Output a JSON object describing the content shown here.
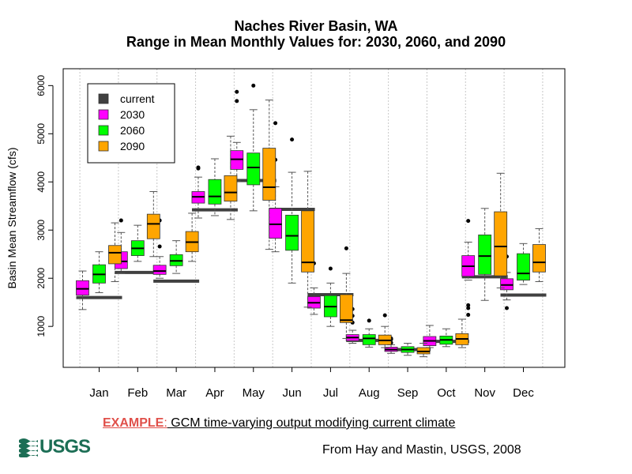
{
  "chart_data": {
    "type": "box",
    "title": "Naches River Basin, WA",
    "subtitle": "Range in Mean Monthly Values for: 2030, 2060, and 2090",
    "xlabel": "",
    "ylabel": "Basin Mean Streamflow (cfs)",
    "ylim": [
      150,
      6350
    ],
    "yticks": [
      1000,
      2000,
      3000,
      4000,
      5000,
      6000
    ],
    "grid": "vertical dotted",
    "legend_position": "top-left",
    "categories": [
      "Jan",
      "Feb",
      "Mar",
      "Apr",
      "May",
      "Jun",
      "Jul",
      "Aug",
      "Sep",
      "Oct",
      "Nov",
      "Dec"
    ],
    "current": {
      "name": "current",
      "color": "#404040",
      "values": [
        1600,
        2120,
        1940,
        3420,
        4030,
        3430,
        1660,
        710,
        520,
        690,
        2030,
        1650
      ]
    },
    "series": [
      {
        "name": "2030",
        "color": "#ff00ff",
        "boxes": [
          {
            "min": 1350,
            "q1": 1650,
            "median": 1780,
            "q3": 1950,
            "max": 2150,
            "outliers": []
          },
          {
            "min": 2100,
            "q1": 2200,
            "median": 2350,
            "q3": 2550,
            "max": 2950,
            "outliers": [
              3200
            ]
          },
          {
            "min": 2000,
            "q1": 2080,
            "median": 2150,
            "q3": 2270,
            "max": 2450,
            "outliers": [
              2660,
              3200
            ]
          },
          {
            "min": 3250,
            "q1": 3560,
            "median": 3690,
            "q3": 3800,
            "max": 4100,
            "outliers": [
              4280,
              4300
            ]
          },
          {
            "min": 4020,
            "q1": 4260,
            "median": 4470,
            "q3": 4650,
            "max": 4820,
            "outliers": [
              5680,
              5870
            ]
          },
          {
            "min": 2550,
            "q1": 2830,
            "median": 3120,
            "q3": 3450,
            "max": 3900,
            "outliers": [
              4460,
              5220
            ]
          },
          {
            "min": 1250,
            "q1": 1380,
            "median": 1490,
            "q3": 1620,
            "max": 1800,
            "outliers": [
              2310
            ]
          },
          {
            "min": 650,
            "q1": 700,
            "median": 770,
            "q3": 830,
            "max": 920,
            "outliers": [
              1080,
              1220,
              1360
            ]
          },
          {
            "min": 440,
            "q1": 480,
            "median": 520,
            "q3": 570,
            "max": 620,
            "outliers": [
              660,
              730,
              750
            ]
          },
          {
            "min": 560,
            "q1": 600,
            "median": 700,
            "q3": 790,
            "max": 1020,
            "outliers": []
          },
          {
            "min": 1960,
            "q1": 2040,
            "median": 2250,
            "q3": 2470,
            "max": 2750,
            "outliers": [
              3190,
              1440,
              1380,
              1240
            ]
          },
          {
            "min": 1550,
            "q1": 1760,
            "median": 1860,
            "q3": 1990,
            "max": 2120,
            "outliers": [
              2450,
              1380
            ]
          }
        ]
      },
      {
        "name": "2060",
        "color": "#00ff00",
        "boxes": [
          {
            "min": 1700,
            "q1": 1900,
            "median": 2080,
            "q3": 2280,
            "max": 2550,
            "outliers": []
          },
          {
            "min": 2350,
            "q1": 2470,
            "median": 2620,
            "q3": 2780,
            "max": 3100,
            "outliers": []
          },
          {
            "min": 2100,
            "q1": 2260,
            "median": 2360,
            "q3": 2490,
            "max": 2780,
            "outliers": []
          },
          {
            "min": 3300,
            "q1": 3540,
            "median": 3700,
            "q3": 4050,
            "max": 4480,
            "outliers": []
          },
          {
            "min": 3400,
            "q1": 3940,
            "median": 4300,
            "q3": 4600,
            "max": 5500,
            "outliers": [
              6000
            ]
          },
          {
            "min": 1900,
            "q1": 2580,
            "median": 2880,
            "q3": 3310,
            "max": 4200,
            "outliers": [
              4880
            ]
          },
          {
            "min": 1000,
            "q1": 1200,
            "median": 1410,
            "q3": 1640,
            "max": 1900,
            "outliers": [
              2200
            ]
          },
          {
            "min": 570,
            "q1": 620,
            "median": 750,
            "q3": 830,
            "max": 950,
            "outliers": [
              1120
            ]
          },
          {
            "min": 400,
            "q1": 460,
            "median": 520,
            "q3": 580,
            "max": 650,
            "outliers": []
          },
          {
            "min": 580,
            "q1": 630,
            "median": 720,
            "q3": 800,
            "max": 950,
            "outliers": []
          },
          {
            "min": 1540,
            "q1": 2080,
            "median": 2460,
            "q3": 2900,
            "max": 3450,
            "outliers": []
          },
          {
            "min": 1870,
            "q1": 1960,
            "median": 2100,
            "q3": 2510,
            "max": 2720,
            "outliers": []
          }
        ]
      },
      {
        "name": "2090",
        "color": "#ffa500",
        "boxes": [
          {
            "min": 1930,
            "q1": 2300,
            "median": 2530,
            "q3": 2680,
            "max": 3150,
            "outliers": []
          },
          {
            "min": 2450,
            "q1": 2820,
            "median": 3130,
            "q3": 3330,
            "max": 3800,
            "outliers": []
          },
          {
            "min": 2350,
            "q1": 2550,
            "median": 2750,
            "q3": 2970,
            "max": 3350,
            "outliers": []
          },
          {
            "min": 3220,
            "q1": 3600,
            "median": 3780,
            "q3": 4130,
            "max": 4950,
            "outliers": []
          },
          {
            "min": 2600,
            "q1": 3620,
            "median": 3890,
            "q3": 4700,
            "max": 5700,
            "outliers": []
          },
          {
            "min": 1400,
            "q1": 2130,
            "median": 2330,
            "q3": 3400,
            "max": 4220,
            "outliers": []
          },
          {
            "min": 750,
            "q1": 1080,
            "median": 1130,
            "q3": 1660,
            "max": 2100,
            "outliers": [
              2620
            ]
          },
          {
            "min": 560,
            "q1": 620,
            "median": 710,
            "q3": 820,
            "max": 1000,
            "outliers": [
              1230
            ]
          },
          {
            "min": 370,
            "q1": 430,
            "median": 480,
            "q3": 560,
            "max": 650,
            "outliers": []
          },
          {
            "min": 560,
            "q1": 620,
            "median": 740,
            "q3": 850,
            "max": 1150,
            "outliers": []
          },
          {
            "min": 1800,
            "q1": 2050,
            "median": 2660,
            "q3": 3380,
            "max": 4180,
            "outliers": []
          },
          {
            "min": 1930,
            "q1": 2130,
            "median": 2330,
            "q3": 2700,
            "max": 3030,
            "outliers": []
          }
        ]
      }
    ]
  },
  "caption": {
    "lead": "EXAMPLE",
    "separator": ":",
    "text": " GCM time-varying output modifying current climate"
  },
  "citation": "From Hay and Mastin, USGS, 2008",
  "logo": {
    "text": "USGS",
    "icon": "usgs-wave-icon",
    "color": "#1c6e55"
  }
}
